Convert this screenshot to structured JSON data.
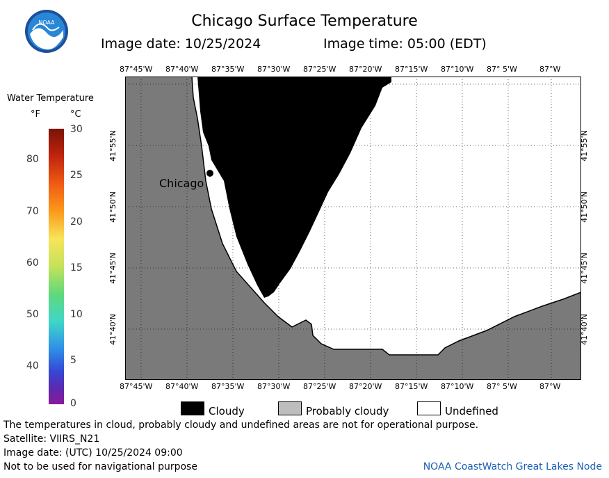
{
  "header": {
    "title": "Chicago Surface Temperature",
    "image_date": "Image date: 10/25/2024",
    "image_time": "Image time: 05:00 (EDT)"
  },
  "logo": {
    "text": "NOAA"
  },
  "colorbar": {
    "title": "Water Temperature",
    "unit_f": "°F",
    "unit_c": "°C",
    "f_ticks": [
      "80",
      "70",
      "60",
      "50",
      "40"
    ],
    "c_ticks": [
      "30",
      "25",
      "20",
      "15",
      "10",
      "5",
      "0"
    ]
  },
  "map": {
    "lon_labels": [
      "87°45'W",
      "87°40'W",
      "87°35'W",
      "87°30'W",
      "87°25'W",
      "87°20'W",
      "87°15'W",
      "87°10'W",
      "87° 5'W",
      "87°W"
    ],
    "lat_labels": [
      "41°55'N",
      "41°50'N",
      "41°45'N",
      "41°40'N"
    ],
    "city": "Chicago",
    "colors": {
      "land": "#7a7a7a",
      "cloudy": "#000000",
      "undefined": "#ffffff"
    }
  },
  "legend": {
    "cloudy": "Cloudy",
    "probably_cloudy": "Probably cloudy",
    "undefined": "Undefined",
    "colors": {
      "cloudy": "#000000",
      "probably_cloudy": "#bdbdbd",
      "undefined": "#ffffff"
    }
  },
  "footer": {
    "line1": "The temperatures in cloud, probably cloudy and undefined areas are not for operational purpose.",
    "line2": "Satellite: VIIRS_N21",
    "line3": "Image date: (UTC) 10/25/2024  09:00",
    "line4": "Not to be used for navigational purpose",
    "credit": "NOAA CoastWatch Great Lakes Node"
  }
}
